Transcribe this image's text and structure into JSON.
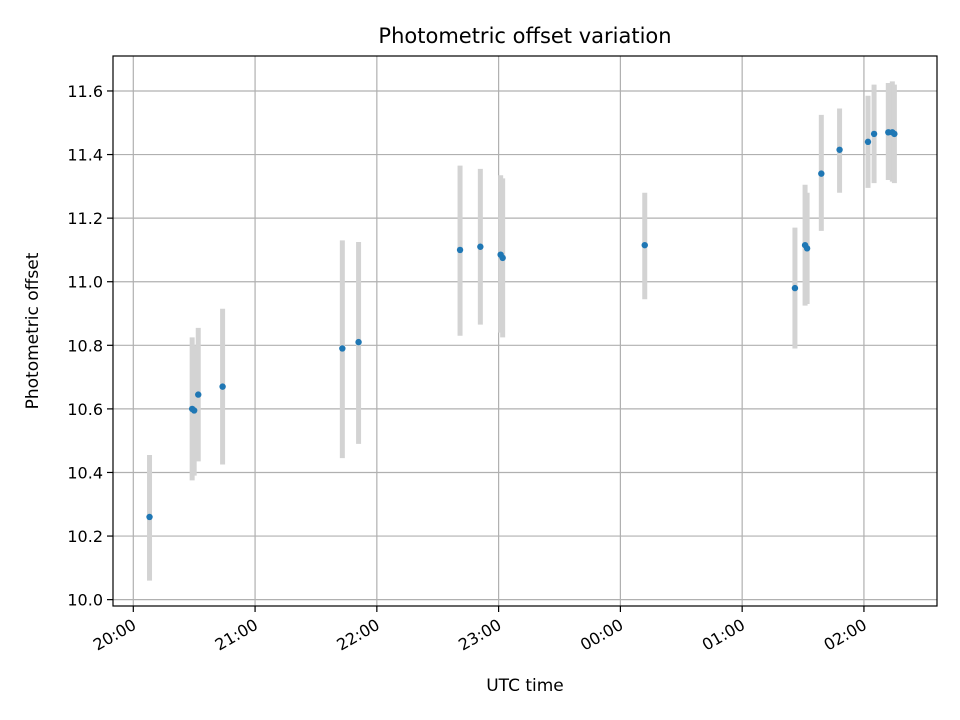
{
  "chart_data": {
    "type": "scatter",
    "title": "Photometric offset variation",
    "xlabel": "UTC time",
    "ylabel": "Photometric offset",
    "grid": true,
    "x_ticks": [
      "20:00",
      "21:00",
      "22:00",
      "23:00",
      "00:00",
      "01:00",
      "02:00"
    ],
    "y_ticks": [
      "10.0",
      "10.2",
      "10.4",
      "10.6",
      "10.8",
      "11.0",
      "11.2",
      "11.4",
      "11.6"
    ],
    "xlim": [
      "19:50",
      "02:36"
    ],
    "ylim": [
      9.98,
      11.71
    ],
    "colors": {
      "points": "#1f77b4",
      "errorbars": "#d3d3d3",
      "grid": "#b0b0b0"
    },
    "points": [
      {
        "x": "20:08",
        "y": 10.26,
        "ylow": 10.06,
        "yhigh": 10.455
      },
      {
        "x": "20:29",
        "y": 10.6,
        "ylow": 10.375,
        "yhigh": 10.825
      },
      {
        "x": "20:30",
        "y": 10.595,
        "ylow": 10.39,
        "yhigh": 10.8
      },
      {
        "x": "20:32",
        "y": 10.645,
        "ylow": 10.435,
        "yhigh": 10.855
      },
      {
        "x": "20:44",
        "y": 10.67,
        "ylow": 10.425,
        "yhigh": 10.915
      },
      {
        "x": "21:43",
        "y": 10.79,
        "ylow": 10.445,
        "yhigh": 11.13
      },
      {
        "x": "21:51",
        "y": 10.81,
        "ylow": 10.49,
        "yhigh": 11.125
      },
      {
        "x": "22:41",
        "y": 11.1,
        "ylow": 10.83,
        "yhigh": 11.365
      },
      {
        "x": "22:51",
        "y": 11.11,
        "ylow": 10.865,
        "yhigh": 11.355
      },
      {
        "x": "23:01",
        "y": 11.085,
        "ylow": 10.84,
        "yhigh": 11.335
      },
      {
        "x": "23:02",
        "y": 11.075,
        "ylow": 10.825,
        "yhigh": 11.325
      },
      {
        "x": "00:12",
        "y": 11.115,
        "ylow": 10.945,
        "yhigh": 11.28
      },
      {
        "x": "01:26",
        "y": 10.98,
        "ylow": 10.79,
        "yhigh": 11.17
      },
      {
        "x": "01:31",
        "y": 11.115,
        "ylow": 10.925,
        "yhigh": 11.305
      },
      {
        "x": "01:32",
        "y": 11.105,
        "ylow": 10.93,
        "yhigh": 11.28
      },
      {
        "x": "01:39",
        "y": 11.34,
        "ylow": 11.16,
        "yhigh": 11.525
      },
      {
        "x": "01:48",
        "y": 11.415,
        "ylow": 11.28,
        "yhigh": 11.545
      },
      {
        "x": "02:02",
        "y": 11.44,
        "ylow": 11.295,
        "yhigh": 11.585
      },
      {
        "x": "02:05",
        "y": 11.465,
        "ylow": 11.31,
        "yhigh": 11.62
      },
      {
        "x": "02:12",
        "y": 11.47,
        "ylow": 11.32,
        "yhigh": 11.625
      },
      {
        "x": "02:14",
        "y": 11.47,
        "ylow": 11.315,
        "yhigh": 11.63
      },
      {
        "x": "02:15",
        "y": 11.465,
        "ylow": 11.31,
        "yhigh": 11.62
      }
    ]
  }
}
